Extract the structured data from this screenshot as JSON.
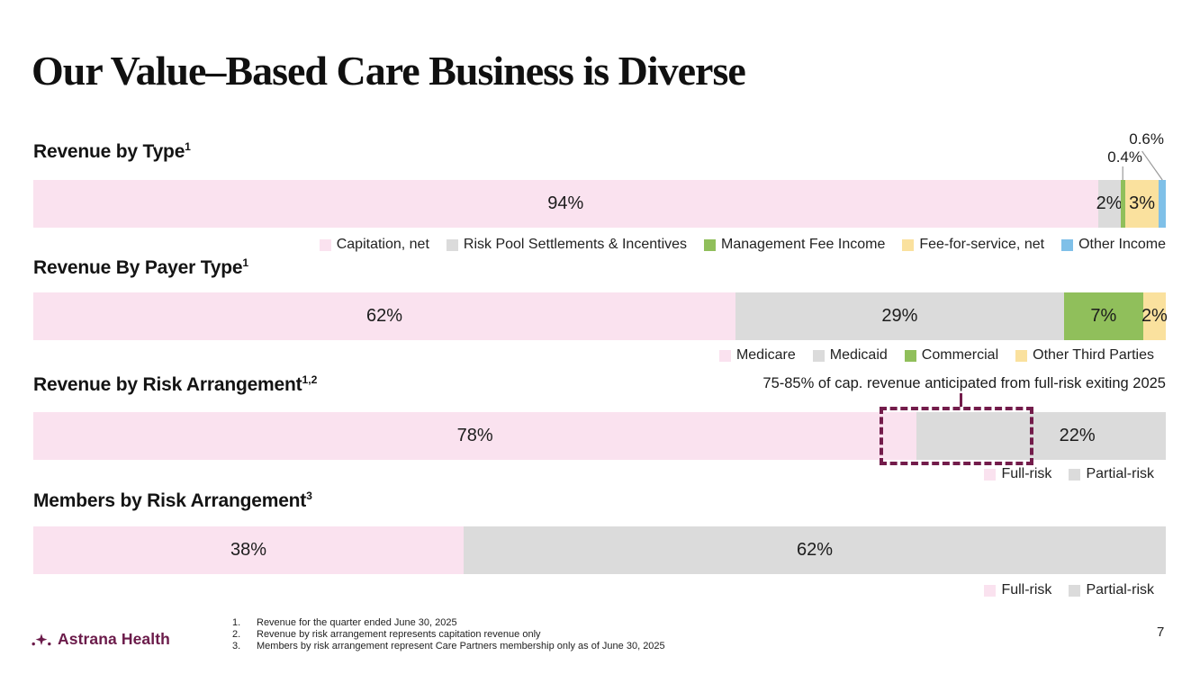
{
  "slide": {
    "title": "Our Value–Based Care Business is Diverse",
    "page_number": "7",
    "logo": {
      "text": "Astrana Health",
      "icon": "sparkle-dots-icon"
    }
  },
  "colors": {
    "pink": "#FAE2EF",
    "gray": "#DBDBDB",
    "green": "#90BF5B",
    "yellow": "#FAE19E",
    "blue": "#7FC0E8",
    "maroon": "#731C4B",
    "leader_line": "#9A9A9A"
  },
  "chart_data": [
    {
      "type": "bar",
      "title": "Revenue by Type",
      "sup": "1",
      "segments": [
        {
          "label": "Capitation, net",
          "value": 94,
          "display": "94%",
          "color": "pink"
        },
        {
          "label": "Risk Pool Settlements & Incentives",
          "value": 2,
          "display": "2%",
          "color": "gray"
        },
        {
          "label": "Management Fee Income",
          "value": 0.4,
          "display": "",
          "callout": "0.4%",
          "color": "green"
        },
        {
          "label": "Fee-for-service, net",
          "value": 3,
          "display": "3%",
          "color": "yellow"
        },
        {
          "label": "Other Income",
          "value": 0.6,
          "display": "",
          "callout": "0.6%",
          "color": "blue"
        }
      ]
    },
    {
      "type": "bar",
      "title": "Revenue By Payer Type",
      "sup": "1",
      "segments": [
        {
          "label": "Medicare",
          "value": 62,
          "display": "62%",
          "color": "pink"
        },
        {
          "label": "Medicaid",
          "value": 29,
          "display": "29%",
          "color": "gray"
        },
        {
          "label": "Commercial",
          "value": 7,
          "display": "7%",
          "color": "green"
        },
        {
          "label": "Other Third Parties",
          "value": 2,
          "display": "2%",
          "color": "yellow"
        }
      ]
    },
    {
      "type": "bar",
      "title": "Revenue by Risk Arrangement",
      "sup": "1,2",
      "annotation": {
        "text": "75-85% of cap. revenue anticipated from full-risk exiting 2025",
        "box_from_pct": 74.7,
        "box_to_pct": 87.7
      },
      "segments": [
        {
          "label": "Full-risk",
          "value": 78,
          "display": "78%",
          "color": "pink"
        },
        {
          "label": "Partial-risk",
          "value": 22,
          "display": "22%",
          "color": "gray"
        }
      ]
    },
    {
      "type": "bar",
      "title": "Members by Risk Arrangement",
      "sup": "3",
      "segments": [
        {
          "label": "Full-risk",
          "value": 38,
          "display": "38%",
          "color": "pink"
        },
        {
          "label": "Partial-risk",
          "value": 62,
          "display": "62%",
          "color": "gray"
        }
      ]
    }
  ],
  "footnotes": [
    {
      "num": "1.",
      "text": "Revenue for the quarter ended June 30, 2025"
    },
    {
      "num": "2.",
      "text": "Revenue by risk arrangement represents capitation revenue only"
    },
    {
      "num": "3.",
      "text": "Members by risk arrangement represent Care Partners membership only as of June 30, 2025"
    }
  ]
}
